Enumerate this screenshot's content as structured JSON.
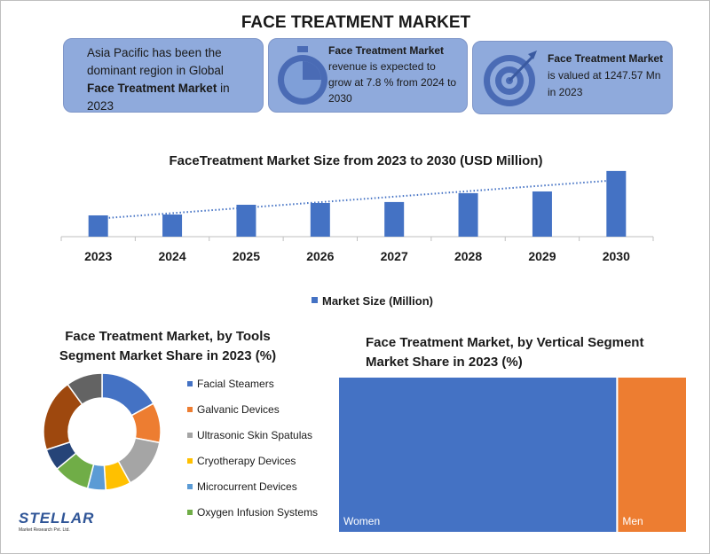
{
  "title": "FACE TREATMENT MARKET",
  "info": [
    {
      "pre": "Asia Pacific has been the dominant region in Global ",
      "bold": "Face Treatment Market",
      "post": " in 2023"
    },
    {
      "bold": "Face Treatment Market",
      "post": " revenue is expected to grow at 7.8 % from 2024 to 2030"
    },
    {
      "bold": "Face Treatment Market",
      "post": " is valued at 1247.57 Mn in 2023"
    }
  ],
  "logo": {
    "name": "STELLAR",
    "tagline": "Market Research Pvt. Ltd."
  },
  "chart_data": [
    {
      "type": "bar",
      "title": "FaceTreatment Market Size from 2023 to 2030 (USD Million)",
      "categories": [
        "2023",
        "2024",
        "2025",
        "2026",
        "2027",
        "2028",
        "2029",
        "2030"
      ],
      "series": [
        {
          "name": "Market Size (Million)",
          "color": "#4472c4",
          "values": [
            1247.57,
            1300,
            1870,
            1975,
            2030,
            2550,
            2650,
            3850
          ]
        }
      ],
      "ylim": [
        0,
        4000
      ],
      "trendline": true,
      "legend": "bottom"
    },
    {
      "type": "pie",
      "title": "Face Treatment Market, by Tools Segment Market Share in 2023 (%)",
      "categories": [
        "Facial Steamers",
        "Galvanic Devices",
        "Ultrasonic Skin Spatulas",
        "Cryotherapy Devices",
        "Microcurrent Devices",
        "Oxygen Infusion Systems",
        null,
        null,
        null
      ],
      "values": [
        17,
        11,
        14,
        7,
        5,
        10,
        6,
        20,
        10
      ],
      "colors": [
        "#4472c4",
        "#ed7d31",
        "#a5a5a5",
        "#ffc000",
        "#5b9bd5",
        "#70ad47",
        "#264478",
        "#9e480e",
        "#636363"
      ],
      "donut": true,
      "legend": "right"
    },
    {
      "type": "treemap",
      "title": "Face Treatment Market, by Vertical Segment Market Share in 2023 (%)",
      "categories": [
        "Women",
        "Men"
      ],
      "values": [
        80,
        20
      ],
      "colors": [
        "#4472c4",
        "#ed7d31"
      ]
    }
  ]
}
